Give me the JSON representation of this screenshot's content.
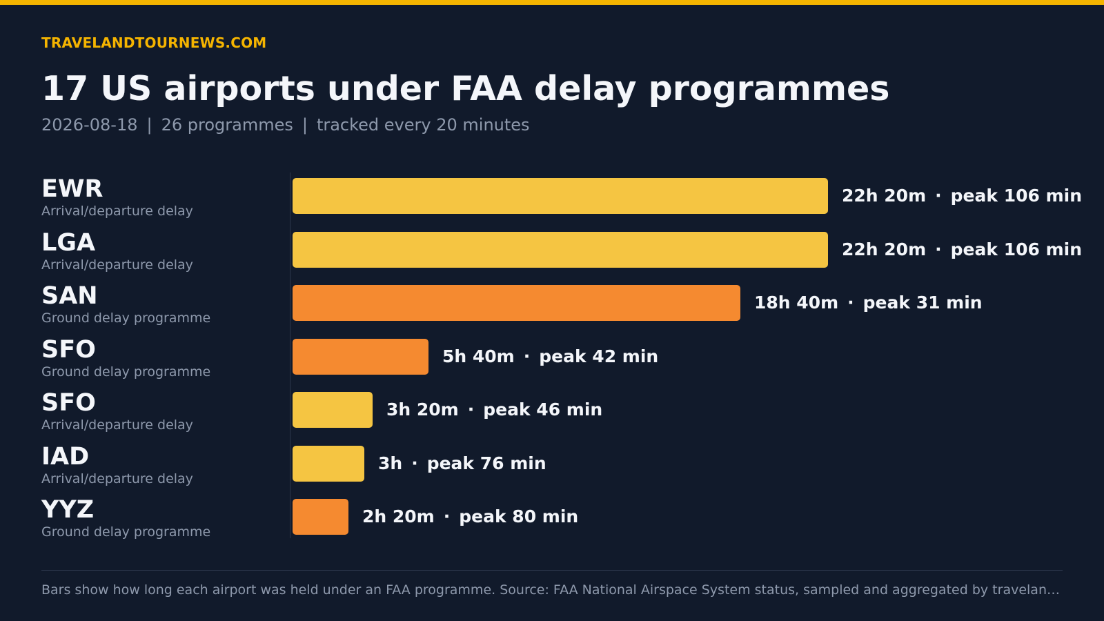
{
  "brand": "TRAVELANDTOURNEWS.COM",
  "colors": {
    "accent": "#f5b400",
    "arrival_departure": "#f5c542",
    "ground_delay": "#f58a30",
    "background": "#111a2b"
  },
  "chart_data": {
    "type": "bar",
    "orientation": "horizontal",
    "title": "17 US airports under FAA delay programmes",
    "subtitle": {
      "date": "2026-08-18",
      "programmes": "26 programmes",
      "frequency": "tracked every 20 minutes",
      "separator": "|"
    },
    "unit": "minutes",
    "categories": [
      "EWR",
      "LGA",
      "SAN",
      "SFO",
      "SFO",
      "IAD",
      "YYZ"
    ],
    "rows": [
      {
        "code": "EWR",
        "type": "Arrival/departure delay",
        "duration_label": "22h 20m",
        "duration_minutes": 1340,
        "peak_label": "peak 106 min",
        "peak_minutes": 106
      },
      {
        "code": "LGA",
        "type": "Arrival/departure delay",
        "duration_label": "22h 20m",
        "duration_minutes": 1340,
        "peak_label": "peak 106 min",
        "peak_minutes": 106
      },
      {
        "code": "SAN",
        "type": "Ground delay programme",
        "duration_label": "18h 40m",
        "duration_minutes": 1120,
        "peak_label": "peak 31 min",
        "peak_minutes": 31
      },
      {
        "code": "SFO",
        "type": "Ground delay programme",
        "duration_label": "5h 40m",
        "duration_minutes": 340,
        "peak_label": "peak 42 min",
        "peak_minutes": 42
      },
      {
        "code": "SFO",
        "type": "Arrival/departure delay",
        "duration_label": "3h 20m",
        "duration_minutes": 200,
        "peak_label": "peak 46 min",
        "peak_minutes": 46
      },
      {
        "code": "IAD",
        "type": "Arrival/departure delay",
        "duration_label": "3h",
        "duration_minutes": 180,
        "peak_label": "peak 76 min",
        "peak_minutes": 76
      },
      {
        "code": "YYZ",
        "type": "Ground delay programme",
        "duration_label": "2h 20m",
        "duration_minutes": 140,
        "peak_label": "peak 80 min",
        "peak_minutes": 80
      }
    ],
    "label_separator": "·"
  },
  "footer": "Bars show how long each airport was held under an FAA programme. Source: FAA National Airspace System status, sampled and aggregated by travelandtour…"
}
